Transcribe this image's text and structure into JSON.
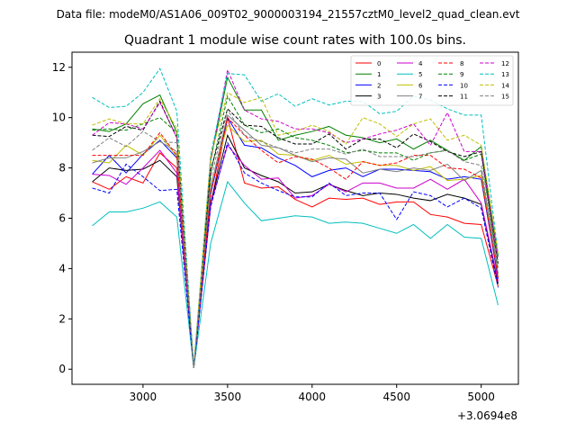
{
  "figure": {
    "suptitle": "Data file: modeM0/AS1A06_009T02_9000003194_21557cztM0_level2_quad_clean.evt",
    "offset_text": "+3.0694e8"
  },
  "chart_data": {
    "type": "line",
    "title": "Quadrant 1 module wise count rates with 100.0s bins.",
    "xlabel": "",
    "ylabel": "",
    "x_offset": 306940000,
    "xlim": [
      2580,
      5220
    ],
    "ylim": [
      -0.6,
      12.6
    ],
    "x_ticks": [
      3000,
      3500,
      4000,
      4500,
      5000
    ],
    "x_tick_labels": [
      "3000",
      "3500",
      "4000",
      "4500",
      "5000"
    ],
    "y_ticks": [
      0,
      2,
      4,
      6,
      8,
      10,
      12
    ],
    "y_tick_labels": [
      "0",
      "2",
      "4",
      "6",
      "8",
      "10",
      "12"
    ],
    "grid": false,
    "legend_location": "top-right",
    "legend_columns": 4,
    "x": [
      2700,
      2800,
      2900,
      3000,
      3100,
      3200,
      3300,
      3400,
      3500,
      3600,
      3700,
      3800,
      3900,
      4000,
      4100,
      4200,
      4300,
      4400,
      4500,
      4600,
      4700,
      4800,
      4900,
      5000,
      5100
    ],
    "series": [
      {
        "name": "0",
        "color": "#ff0000",
        "dashed": false,
        "values": [
          7.45,
          7.15,
          7.65,
          7.4,
          8.6,
          8.0,
          0.05,
          6.5,
          10.0,
          7.4,
          7.2,
          7.25,
          6.75,
          6.45,
          6.8,
          6.75,
          6.8,
          6.55,
          6.65,
          6.65,
          6.15,
          6.05,
          5.8,
          5.75,
          3.3
        ]
      },
      {
        "name": "1",
        "color": "#008000",
        "dashed": false,
        "values": [
          9.55,
          9.45,
          9.75,
          10.55,
          10.9,
          9.4,
          0.05,
          8.3,
          11.6,
          10.3,
          10.3,
          9.1,
          9.3,
          9.45,
          9.65,
          9.3,
          9.2,
          9.0,
          9.15,
          8.75,
          9.1,
          8.7,
          8.3,
          8.85,
          4.5
        ]
      },
      {
        "name": "2",
        "color": "#0000ff",
        "dashed": false,
        "values": [
          7.75,
          8.5,
          7.8,
          8.55,
          9.1,
          8.4,
          0.05,
          6.95,
          10.0,
          8.9,
          8.8,
          8.4,
          8.1,
          7.65,
          7.9,
          8.0,
          7.65,
          7.95,
          7.95,
          7.9,
          7.85,
          7.55,
          7.65,
          7.55,
          3.6
        ]
      },
      {
        "name": "3",
        "color": "#000000",
        "dashed": false,
        "values": [
          7.45,
          8.0,
          7.9,
          7.95,
          8.3,
          7.65,
          0.05,
          6.6,
          9.3,
          8.0,
          7.7,
          7.45,
          7.0,
          7.05,
          7.35,
          7.1,
          6.9,
          7.0,
          6.95,
          6.8,
          6.7,
          6.95,
          6.8,
          6.55,
          3.4
        ]
      },
      {
        "name": "4",
        "color": "#cc00cc",
        "dashed": false,
        "values": [
          7.75,
          7.7,
          7.35,
          8.0,
          8.7,
          7.8,
          0.05,
          6.55,
          8.9,
          8.1,
          7.55,
          7.6,
          6.8,
          6.9,
          7.35,
          7.05,
          7.4,
          7.4,
          7.2,
          7.2,
          7.55,
          7.15,
          7.55,
          6.6,
          3.5
        ]
      },
      {
        "name": "5",
        "color": "#00bfbf",
        "dashed": false,
        "values": [
          5.7,
          6.25,
          6.25,
          6.4,
          6.65,
          6.05,
          0.05,
          5.0,
          7.45,
          6.6,
          5.9,
          6.0,
          6.1,
          6.05,
          5.8,
          5.85,
          5.8,
          5.6,
          5.4,
          5.75,
          5.2,
          5.75,
          5.25,
          5.2,
          2.55
        ]
      },
      {
        "name": "6",
        "color": "#bfbf00",
        "dashed": false,
        "values": [
          8.3,
          8.2,
          8.9,
          8.5,
          9.3,
          8.45,
          0.05,
          7.3,
          9.7,
          9.05,
          9.1,
          8.55,
          8.5,
          8.3,
          8.5,
          8.15,
          8.25,
          8.1,
          8.1,
          7.9,
          8.05,
          7.5,
          7.55,
          7.7,
          3.75
        ]
      },
      {
        "name": "7",
        "color": "#808080",
        "dashed": false,
        "values": [
          8.2,
          8.4,
          8.4,
          8.65,
          9.05,
          8.65,
          0.05,
          7.2,
          10.1,
          9.5,
          8.9,
          8.8,
          8.5,
          8.25,
          8.4,
          8.35,
          7.8,
          7.95,
          7.85,
          8.0,
          7.9,
          8.15,
          7.5,
          7.9,
          3.8
        ]
      },
      {
        "name": "8",
        "color": "#ff0000",
        "dashed": true,
        "values": [
          8.5,
          8.5,
          8.5,
          8.5,
          9.4,
          8.5,
          0.05,
          7.0,
          10.0,
          9.3,
          8.7,
          8.2,
          8.45,
          8.35,
          8.0,
          7.55,
          8.25,
          8.1,
          8.2,
          8.5,
          8.5,
          8.0,
          7.95,
          7.6,
          3.65
        ]
      },
      {
        "name": "9",
        "color": "#008000",
        "dashed": true,
        "values": [
          9.5,
          9.55,
          9.5,
          9.75,
          10.0,
          9.4,
          0.05,
          7.8,
          10.85,
          9.7,
          9.4,
          9.55,
          9.2,
          9.1,
          8.9,
          8.6,
          8.7,
          8.6,
          8.6,
          8.3,
          8.6,
          8.7,
          8.3,
          8.55,
          3.95
        ]
      },
      {
        "name": "10",
        "color": "#0000ff",
        "dashed": true,
        "values": [
          7.2,
          7.0,
          8.15,
          7.65,
          7.1,
          7.15,
          0.05,
          6.45,
          9.0,
          7.8,
          7.4,
          7.1,
          6.85,
          6.85,
          7.4,
          6.9,
          7.0,
          7.0,
          5.95,
          7.05,
          6.9,
          6.45,
          6.8,
          6.4,
          3.25
        ]
      },
      {
        "name": "11",
        "color": "#000000",
        "dashed": true,
        "values": [
          9.3,
          9.25,
          9.65,
          9.5,
          10.65,
          9.2,
          0.05,
          7.9,
          10.35,
          9.7,
          9.65,
          9.2,
          8.95,
          8.95,
          9.35,
          8.75,
          9.15,
          9.15,
          8.8,
          9.35,
          9.05,
          8.65,
          8.45,
          8.65,
          4.2
        ]
      },
      {
        "name": "12",
        "color": "#cc00cc",
        "dashed": true,
        "values": [
          9.3,
          9.8,
          9.75,
          9.55,
          10.6,
          9.2,
          0.05,
          8.3,
          11.9,
          10.3,
          9.95,
          9.85,
          9.55,
          9.55,
          9.4,
          9.0,
          9.15,
          9.35,
          9.5,
          9.75,
          8.9,
          10.2,
          8.65,
          8.65,
          4.35
        ]
      },
      {
        "name": "13",
        "color": "#00bfbf",
        "dashed": true,
        "values": [
          10.8,
          10.4,
          10.45,
          11.0,
          11.95,
          10.25,
          0.05,
          8.5,
          11.75,
          11.7,
          10.65,
          10.95,
          10.45,
          10.75,
          10.5,
          10.65,
          10.65,
          10.15,
          10.25,
          10.85,
          10.7,
          10.35,
          10.1,
          10.1,
          4.55
        ]
      },
      {
        "name": "14",
        "color": "#bfbf00",
        "dashed": true,
        "values": [
          9.7,
          9.95,
          9.75,
          9.75,
          10.75,
          9.55,
          0.05,
          8.45,
          11.0,
          10.6,
          10.8,
          9.3,
          9.45,
          9.7,
          9.45,
          8.95,
          10.0,
          9.75,
          9.25,
          9.75,
          9.95,
          9.1,
          9.3,
          8.9,
          4.6
        ]
      },
      {
        "name": "15",
        "color": "#808080",
        "dashed": true,
        "values": [
          8.7,
          9.2,
          8.85,
          9.45,
          9.05,
          9.0,
          0.05,
          7.55,
          10.3,
          9.3,
          9.05,
          8.8,
          8.6,
          8.75,
          8.75,
          8.55,
          8.75,
          8.45,
          8.45,
          8.45,
          8.6,
          8.7,
          8.25,
          8.1,
          4.05
        ]
      }
    ]
  }
}
